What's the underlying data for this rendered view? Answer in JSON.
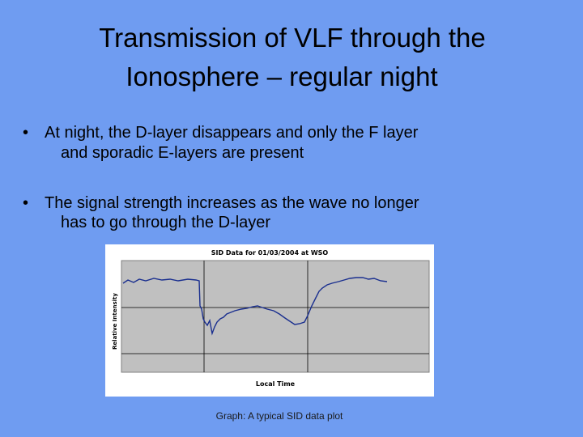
{
  "slide": {
    "title_lines": [
      "Transmission of VLF through the",
      "Ionosphere – regular night"
    ],
    "bullets": [
      {
        "lines": [
          "At night, the D-layer disappears and only the F layer",
          "and sporadic E-layers are present"
        ]
      },
      {
        "lines": [
          "The signal strength increases as the wave no longer",
          "has to go through the D-layer"
        ]
      }
    ],
    "figure": {
      "title": "SID Data for 01/03/2004 at WSO",
      "x_label": "Local Time",
      "y_label": "Relative Intensity",
      "caption": "Graph: A typical SID data plot"
    }
  }
}
